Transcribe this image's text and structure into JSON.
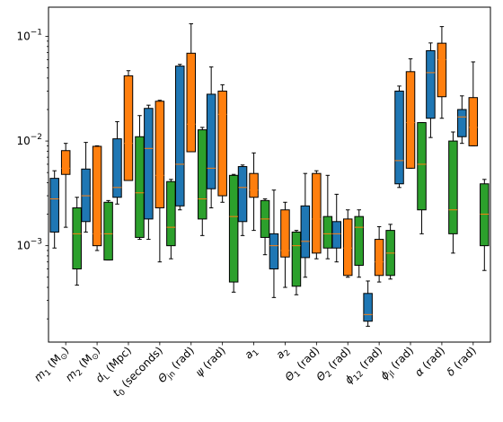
{
  "chart_data": {
    "type": "box",
    "title": "",
    "xlabel": "",
    "ylabel": "",
    "yscale": "log",
    "ylim": [
      0.00012,
      0.19
    ],
    "ytick_labels": [
      {
        "value": 0.001,
        "base": "10",
        "exp": "−3"
      },
      {
        "value": 0.01,
        "base": "10",
        "exp": "−2"
      },
      {
        "value": 0.1,
        "base": "10",
        "exp": "−1"
      }
    ],
    "series_colors": [
      "#1f77b4",
      "#ff7f0e",
      "#2ca02c"
    ],
    "median_color": "#ff7f0e",
    "legend": "none",
    "grid": false,
    "categories": [
      {
        "main": "m",
        "sub": "1",
        "tail": " (M",
        "sub2": "⊙",
        "end": ")"
      },
      {
        "main": "m",
        "sub": "2",
        "tail": " (M",
        "sub2": "⊙",
        "end": ")"
      },
      {
        "main": "d",
        "sub": "L",
        "tail": " (Mpc)"
      },
      {
        "main": "t",
        "sub": "0",
        "tail": " (seconds)"
      },
      {
        "main": "Θ",
        "sub": "jn",
        "tail": " (rad)"
      },
      {
        "main": "ψ",
        "sub": "",
        "tail": " (rad)"
      },
      {
        "main": "a",
        "sub": "1",
        "tail": ""
      },
      {
        "main": "a",
        "sub": "2",
        "tail": ""
      },
      {
        "main": "Θ",
        "sub": "1",
        "tail": " (rad)"
      },
      {
        "main": "Θ",
        "sub": "2",
        "tail": " (rad)"
      },
      {
        "main": "ϕ",
        "sub": "12",
        "tail": " (rad)"
      },
      {
        "main": "ϕ",
        "sub": "jl",
        "tail": " (rad)"
      },
      {
        "main": "α",
        "sub": "",
        "tail": " (rad)"
      },
      {
        "main": "δ",
        "sub": "",
        "tail": " (rad)"
      }
    ],
    "boxes": [
      [
        {
          "min": 0.00095,
          "q1": 0.00135,
          "median": 0.0028,
          "q3": 0.0044,
          "max": 0.0052
        },
        {
          "min": 0.00135,
          "q1": 0.0017,
          "median": 0.003,
          "q3": 0.0054,
          "max": 0.0097
        },
        {
          "min": 0.0025,
          "q1": 0.0029,
          "median": 0.0036,
          "q3": 0.0105,
          "max": 0.0153
        },
        {
          "min": 0.00115,
          "q1": 0.0018,
          "median": 0.0085,
          "q3": 0.0205,
          "max": 0.022
        },
        {
          "min": 0.0022,
          "q1": 0.0024,
          "median": 0.006,
          "q3": 0.052,
          "max": 0.054
        },
        {
          "min": 0.0023,
          "q1": 0.0035,
          "median": 0.0055,
          "q3": 0.028,
          "max": 0.051
        },
        {
          "min": 0.00125,
          "q1": 0.0017,
          "median": 0.0036,
          "q3": 0.0057,
          "max": 0.0059
        },
        {
          "min": 0.00032,
          "q1": 0.0006,
          "median": 0.001,
          "q3": 0.0013,
          "max": 0.0034
        },
        {
          "min": 0.0005,
          "q1": 0.00077,
          "median": 0.0011,
          "q3": 0.0024,
          "max": 0.0049
        },
        {
          "min": 0.0007,
          "q1": 0.00095,
          "median": 0.0013,
          "q3": 0.0017,
          "max": 0.0031
        },
        {
          "min": 0.00017,
          "q1": 0.00019,
          "median": 0.00022,
          "q3": 0.00035,
          "max": 0.00046
        },
        {
          "min": 0.0036,
          "q1": 0.0039,
          "median": 0.0065,
          "q3": 0.03,
          "max": 0.0335
        },
        {
          "min": 0.0108,
          "q1": 0.0165,
          "median": 0.045,
          "q3": 0.073,
          "max": 0.0865
        },
        {
          "min": 0.0095,
          "q1": 0.011,
          "median": 0.017,
          "q3": 0.02,
          "max": 0.027
        }
      ],
      [
        {
          "min": 0.0015,
          "q1": 0.0048,
          "median": 0.0055,
          "q3": 0.0081,
          "max": 0.0095
        },
        {
          "min": 0.0009,
          "q1": 0.001,
          "median": 0.0013,
          "q3": 0.0089,
          "max": 0.009
        },
        {
          "min": 0.0042,
          "q1": 0.0042,
          "median": 0.0095,
          "q3": 0.042,
          "max": 0.047
        },
        {
          "min": 0.0007,
          "q1": 0.0023,
          "median": 0.0047,
          "q3": 0.024,
          "max": 0.0245
        },
        {
          "min": 0.0079,
          "q1": 0.0079,
          "median": 0.0145,
          "q3": 0.069,
          "max": 0.132
        },
        {
          "min": 0.0026,
          "q1": 0.003,
          "median": 0.018,
          "q3": 0.03,
          "max": 0.0345
        },
        {
          "min": 0.0014,
          "q1": 0.0029,
          "median": 0.0034,
          "q3": 0.0049,
          "max": 0.0077
        },
        {
          "min": 0.0004,
          "q1": 0.00078,
          "median": 0.0009,
          "q3": 0.0022,
          "max": 0.0026
        },
        {
          "min": 0.00075,
          "q1": 0.00085,
          "median": 0.0018,
          "q3": 0.0049,
          "max": 0.0052
        },
        {
          "min": 0.0005,
          "q1": 0.00052,
          "median": 0.00095,
          "q3": 0.0018,
          "max": 0.0022
        },
        {
          "min": 0.00045,
          "q1": 0.00052,
          "median": 0.0007,
          "q3": 0.00115,
          "max": 0.00152
        },
        {
          "min": 0.0055,
          "q1": 0.0055,
          "median": 0.015,
          "q3": 0.046,
          "max": 0.061
        },
        {
          "min": 0.0165,
          "q1": 0.0265,
          "median": 0.06,
          "q3": 0.086,
          "max": 0.124
        },
        {
          "min": 0.009,
          "q1": 0.009,
          "median": 0.0135,
          "q3": 0.026,
          "max": 0.057
        }
      ],
      [
        {
          "min": 0.00042,
          "q1": 0.0006,
          "median": 0.0013,
          "q3": 0.0023,
          "max": 0.0029
        },
        {
          "min": 0.00073,
          "q1": 0.00073,
          "median": 0.0013,
          "q3": 0.0026,
          "max": 0.0027
        },
        {
          "min": 0.00115,
          "q1": 0.0012,
          "median": 0.0032,
          "q3": 0.011,
          "max": 0.0175
        },
        {
          "min": 0.00075,
          "q1": 0.001,
          "median": 0.0015,
          "q3": 0.0041,
          "max": 0.0043
        },
        {
          "min": 0.00125,
          "q1": 0.0018,
          "median": 0.0028,
          "q3": 0.0128,
          "max": 0.0135
        },
        {
          "min": 0.00036,
          "q1": 0.00045,
          "median": 0.0019,
          "q3": 0.0047,
          "max": 0.0048
        },
        {
          "min": 0.00082,
          "q1": 0.0012,
          "median": 0.0018,
          "q3": 0.0027,
          "max": 0.0028
        },
        {
          "min": 0.00034,
          "q1": 0.00041,
          "median": 0.001,
          "q3": 0.00135,
          "max": 0.0014
        },
        {
          "min": 0.00075,
          "q1": 0.00095,
          "median": 0.0013,
          "q3": 0.0019,
          "max": 0.0047
        },
        {
          "min": 0.0005,
          "q1": 0.00065,
          "median": 0.0015,
          "q3": 0.0019,
          "max": 0.0022
        },
        {
          "min": 0.00048,
          "q1": 0.00052,
          "median": 0.00085,
          "q3": 0.0014,
          "max": 0.0016
        },
        {
          "min": 0.0013,
          "q1": 0.0022,
          "median": 0.006,
          "q3": 0.015,
          "max": 0.015
        },
        {
          "min": 0.00085,
          "q1": 0.0013,
          "median": 0.0022,
          "q3": 0.01,
          "max": 0.0122
        },
        {
          "min": 0.00058,
          "q1": 0.001,
          "median": 0.002,
          "q3": 0.0039,
          "max": 0.0043
        }
      ]
    ]
  }
}
